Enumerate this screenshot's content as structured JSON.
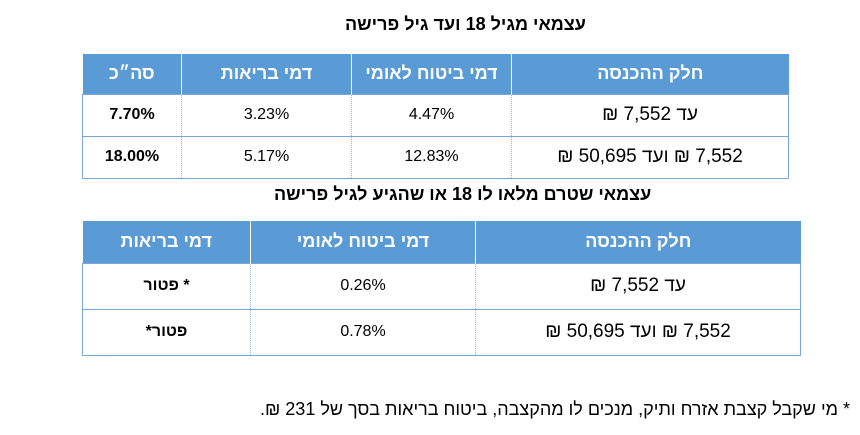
{
  "table1": {
    "title": "עצמאי מגיל 18 ועד גיל פרישה",
    "headers": [
      "חלק ההכנסה",
      "דמי ביטוח לאומי",
      "דמי בריאות",
      "סה״כ"
    ],
    "rows": [
      [
        "עד 7,552 ₪",
        "4.47%",
        "3.23%",
        "7.70%"
      ],
      [
        "7,552 ₪  ועד 50,695 ₪",
        "12.83%",
        "5.17%",
        "18.00%"
      ]
    ]
  },
  "table2": {
    "title": "עצמאי שטרם מלאו לו 18 או שהגיע לגיל פרישה",
    "headers": [
      "חלק ההכנסה",
      "דמי ביטוח לאומי",
      "דמי בריאות"
    ],
    "rows": [
      [
        "עד 7,552 ₪",
        "0.26%",
        "* פטור"
      ],
      [
        "7,552 ₪  ועד 50,695 ₪",
        "0.78%",
        "פטור*"
      ]
    ]
  },
  "footnote": "*  מי שקבל קצבת אזרח ותיק, מנכים לו מהקצבה, ביטוח בריאות בסך של 231 ₪."
}
